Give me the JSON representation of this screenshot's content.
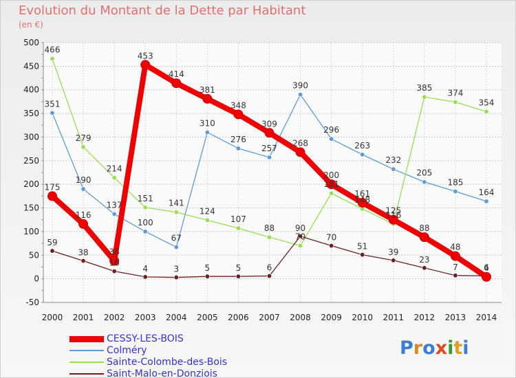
{
  "title": "Evolution du Montant de la Dette par Habitant",
  "subtitle": "(en €)",
  "logo": "Proxiti",
  "chart_data": {
    "type": "line",
    "x": [
      "2000",
      "2001",
      "2002",
      "2003",
      "2004",
      "2005",
      "2006",
      "2007",
      "2008",
      "2009",
      "2010",
      "2011",
      "2012",
      "2013",
      "2014"
    ],
    "ylim": [
      -50,
      500
    ],
    "yticks": [
      -50,
      0,
      50,
      100,
      150,
      200,
      250,
      300,
      350,
      400,
      450,
      500
    ],
    "grid": true,
    "legend_position": "bottom-left",
    "series": [
      {
        "name": "CESSY-LES-BOIS",
        "color": "#ee0000",
        "width": 8,
        "values": [
          175,
          116,
          38,
          453,
          414,
          381,
          348,
          309,
          268,
          200,
          161,
          125,
          88,
          48,
          4
        ]
      },
      {
        "name": "Colméry",
        "color": "#5b9bd5",
        "width": 1.3,
        "values": [
          351,
          190,
          137,
          100,
          67,
          310,
          276,
          257,
          390,
          296,
          263,
          232,
          205,
          185,
          164
        ]
      },
      {
        "name": "Sainte-Colombe-des-Bois",
        "color": "#99dd55",
        "width": 1.3,
        "values": [
          466,
          279,
          214,
          151,
          141,
          124,
          107,
          88,
          70,
          181,
          148,
          116,
          385,
          374,
          354
        ]
      },
      {
        "name": "Saint-Malo-en-Donziois",
        "color": "#6b1f1f",
        "width": 1.3,
        "values": [
          59,
          38,
          16,
          4,
          3,
          5,
          5,
          6,
          90,
          70,
          51,
          39,
          23,
          7,
          6
        ]
      }
    ]
  }
}
